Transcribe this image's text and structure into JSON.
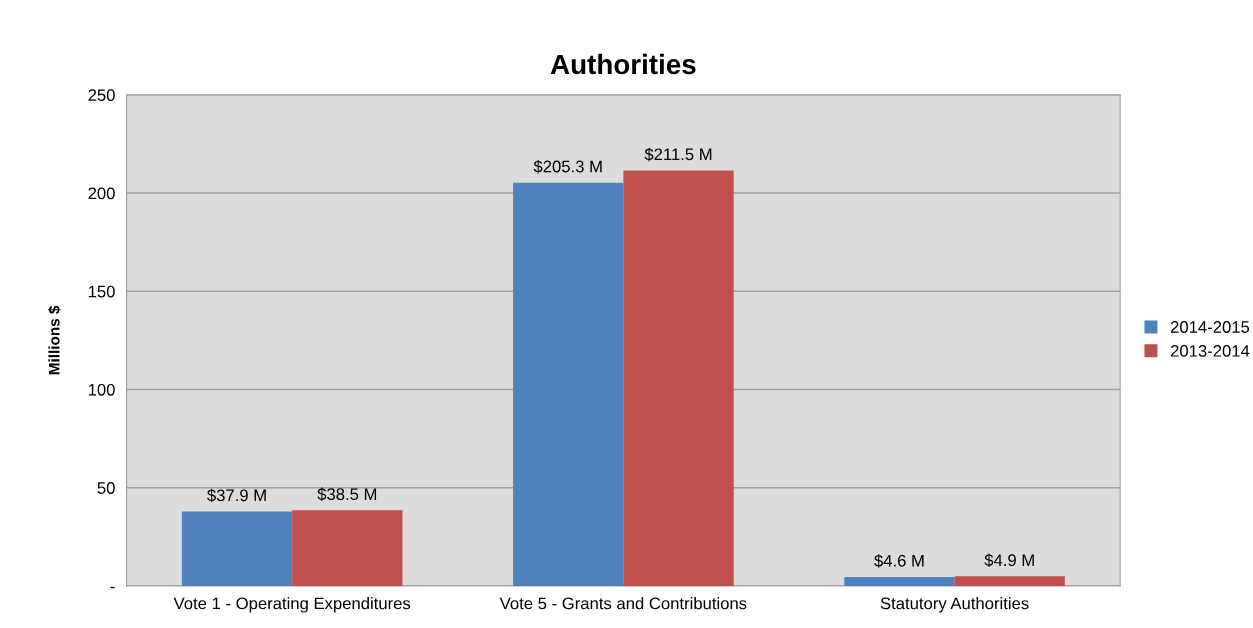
{
  "chart_data": {
    "type": "bar",
    "title": "Authorities",
    "ylabel": "Millions $",
    "categories": [
      "Vote 1 - Operating Expenditures",
      "Vote 5 - Grants and Contributions",
      "Statutory Authorities"
    ],
    "series": [
      {
        "name": "2014-2015",
        "color": "#4f81bd",
        "values": [
          37.9,
          205.3,
          4.6
        ],
        "value_labels": [
          "$37.9 M",
          "$205.3 M",
          "$4.6 M"
        ]
      },
      {
        "name": "2013-2014",
        "color": "#c0504d",
        "values": [
          38.5,
          211.5,
          4.9
        ],
        "value_labels": [
          "$38.5 M",
          "$211.5 M",
          "$4.9 M"
        ]
      }
    ],
    "ylim": [
      0,
      250
    ],
    "yticks": [
      {
        "value": 0,
        "label": "-"
      },
      50,
      100,
      150,
      200,
      250
    ],
    "grid": "y",
    "legend": "right"
  }
}
